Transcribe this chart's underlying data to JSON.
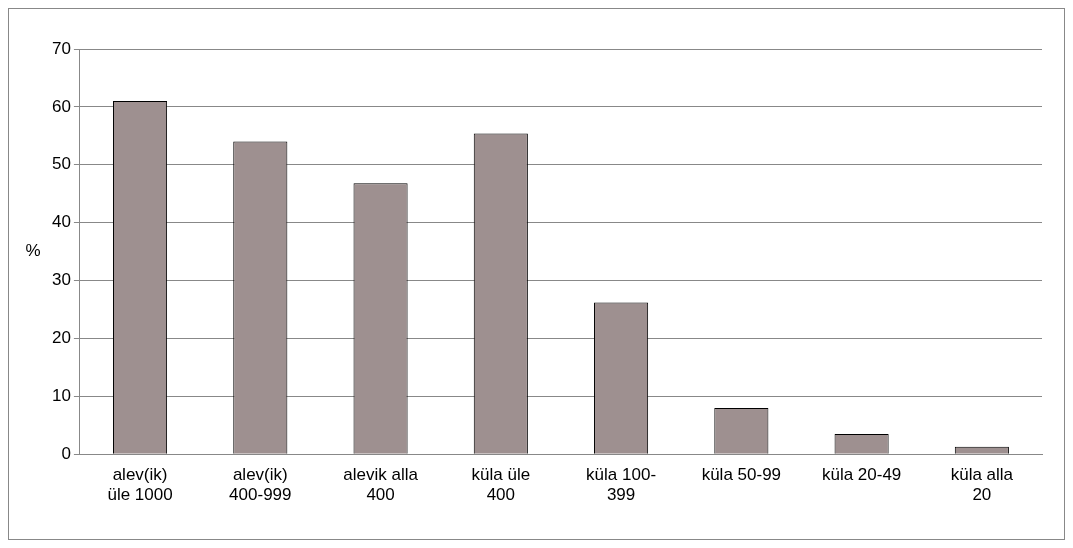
{
  "chart_data": {
    "type": "bar",
    "ylabel": "%",
    "categories": [
      "alev(ik) üle 1000",
      "alev(ik) 400-999",
      "alevik alla 400",
      "küla üle 400",
      "küla 100-399",
      "küla 50-99",
      "küla 20-49",
      "küla alla 20"
    ],
    "values": [
      61,
      54,
      46.8,
      55.4,
      26.2,
      8,
      3.5,
      1.3
    ],
    "color": "#9e9090",
    "ylim": [
      0,
      70
    ],
    "yticks": [
      0,
      10,
      20,
      30,
      40,
      50,
      60,
      70
    ],
    "grid": "y",
    "legend": false
  }
}
